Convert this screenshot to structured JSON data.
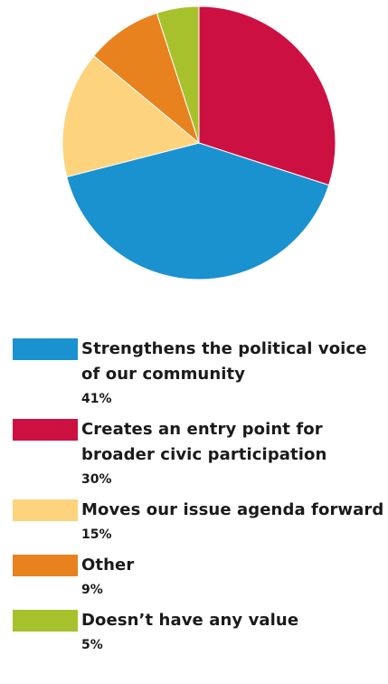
{
  "chart_data": {
    "type": "pie",
    "slices": [
      {
        "label": "Strengthens the political voice of our community",
        "value": 41,
        "value_label": "41%",
        "color": "#1a92cf"
      },
      {
        "label": "Creates an entry point for broader civic participation",
        "value": 30,
        "value_label": "30%",
        "color": "#cd1042"
      },
      {
        "label": "Moves our issue agenda forward",
        "value": 15,
        "value_label": "15%",
        "color": "#fdd37d"
      },
      {
        "label": "Other",
        "value": 9,
        "value_label": "9%",
        "color": "#e8821e"
      },
      {
        "label": "Doesn’t have any value",
        "value": 5,
        "value_label": "5%",
        "color": "#a7c12c"
      }
    ],
    "draw_order": [
      1,
      0,
      2,
      3,
      4
    ],
    "start_angle_deg": 0,
    "direction": "clockwise",
    "legend_position": "bottom"
  }
}
